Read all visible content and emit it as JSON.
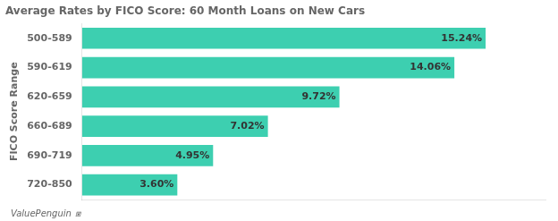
{
  "chart_data": {
    "type": "bar",
    "orientation": "horizontal",
    "title": "Average Rates by FICO Score: 60 Month Loans on New Cars",
    "ylabel": "FICO Score Range",
    "categories": [
      "500-589",
      "590-619",
      "620-659",
      "660-689",
      "690-719",
      "720-850"
    ],
    "values": [
      15.24,
      14.06,
      9.72,
      7.02,
      4.95,
      3.6
    ],
    "value_labels": [
      "15.24%",
      "14.06%",
      "9.72%",
      "7.02%",
      "4.95%",
      "3.60%"
    ],
    "data_labels": true,
    "color": "#3dcfb0",
    "xlim": [
      0,
      17.5
    ],
    "tick_labels": "y",
    "grid": false,
    "annotations": [
      "ValuePenguin",
      "⧆"
    ]
  }
}
